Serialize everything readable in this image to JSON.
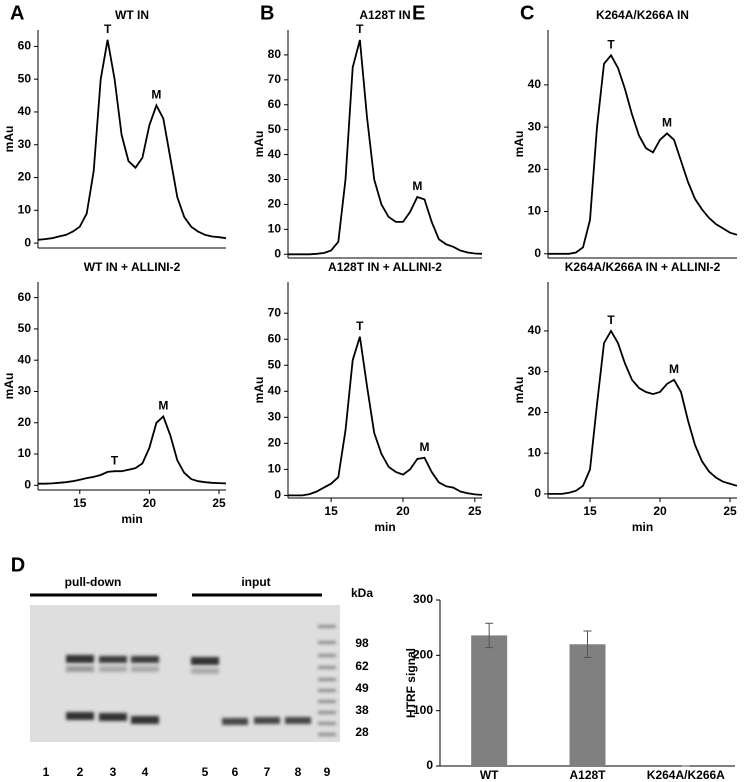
{
  "chart_data": [
    {
      "type": "line",
      "panel": "A",
      "title": "WT IN",
      "ylabel": "mAu",
      "x": [
        12,
        12.5,
        13,
        13.5,
        14,
        14.5,
        15,
        15.5,
        16,
        16.5,
        17,
        17.5,
        18,
        18.5,
        19,
        19.5,
        20,
        20.5,
        21,
        21.5,
        22,
        22.5,
        23,
        23.5,
        24,
        24.5,
        25,
        25.5
      ],
      "series": [
        {
          "color": "#000000",
          "values": [
            1,
            1.2,
            1.5,
            2,
            2.5,
            3.5,
            5,
            9,
            22,
            50,
            62,
            50,
            33,
            25,
            23,
            26,
            36,
            42,
            38,
            26,
            14,
            8,
            5,
            3.5,
            2.5,
            2,
            1.8,
            1.5
          ]
        }
      ],
      "xlim": [
        12,
        25.5
      ],
      "ylim": [
        -1.5,
        65
      ],
      "yticks": [
        0,
        10,
        20,
        30,
        40,
        50,
        60
      ],
      "annotations": [
        {
          "text": "T",
          "x": 17,
          "y": 62
        },
        {
          "text": "M",
          "x": 20.5,
          "y": 42
        }
      ]
    },
    {
      "type": "line",
      "title": "WT IN + ALLINI-2",
      "ylabel": "mAu",
      "xlabel": "min",
      "x": [
        12,
        12.5,
        13,
        13.5,
        14,
        14.5,
        15,
        15.5,
        16,
        16.5,
        17,
        17.5,
        18,
        18.5,
        19,
        19.5,
        20,
        20.5,
        21,
        21.5,
        22,
        22.5,
        23,
        23.5,
        24,
        24.5,
        25,
        25.5
      ],
      "series": [
        {
          "color": "#000000",
          "values": [
            0.5,
            0.5,
            0.6,
            0.8,
            1,
            1.3,
            1.8,
            2.3,
            2.7,
            3.3,
            4.3,
            4.5,
            4.5,
            5,
            5.5,
            7,
            12,
            20,
            22,
            16,
            8,
            4,
            2,
            1.3,
            1,
            0.8,
            0.7,
            0.6
          ]
        }
      ],
      "xlim": [
        12,
        25.5
      ],
      "ylim": [
        -1.5,
        65
      ],
      "yticks": [
        0,
        10,
        20,
        30,
        40,
        50,
        60
      ],
      "xticks": [
        15,
        20,
        25
      ],
      "annotations": [
        {
          "text": "T",
          "x": 17.5,
          "y": 4.5
        },
        {
          "text": "M",
          "x": 21,
          "y": 22
        }
      ]
    },
    {
      "type": "line",
      "panel": "B",
      "title": "A128T IN",
      "ylabel": "mAu",
      "x": [
        12,
        12.5,
        13,
        13.5,
        14,
        14.5,
        15,
        15.5,
        16,
        16.5,
        17,
        17.5,
        18,
        18.5,
        19,
        19.5,
        20,
        20.5,
        21,
        21.5,
        22,
        22.5,
        23,
        23.5,
        24,
        24.5,
        25,
        25.5
      ],
      "series": [
        {
          "color": "#000000",
          "values": [
            0,
            0,
            0,
            0,
            0.2,
            0.5,
            1.5,
            5,
            30,
            75,
            86,
            55,
            30,
            20,
            15,
            13,
            13,
            17,
            23,
            22,
            13,
            6,
            4,
            3,
            1.5,
            0.7,
            0.3,
            0.2
          ]
        }
      ],
      "xlim": [
        12,
        25.5
      ],
      "ylim": [
        -1.5,
        90
      ],
      "yticks": [
        0,
        10,
        20,
        30,
        40,
        50,
        60,
        70,
        80
      ],
      "annotations": [
        {
          "text": "T",
          "x": 17,
          "y": 86
        },
        {
          "text": "M",
          "x": 21,
          "y": 23
        }
      ]
    },
    {
      "type": "line",
      "title": "A128T IN + ALLINI-2",
      "ylabel": "mAu",
      "xlabel": "min",
      "x": [
        12,
        12.5,
        13,
        13.5,
        14,
        14.5,
        15,
        15.5,
        16,
        16.5,
        17,
        17.5,
        18,
        18.5,
        19,
        19.5,
        20,
        20.5,
        21,
        21.5,
        22,
        22.5,
        23,
        23.5,
        24,
        24.5,
        25,
        25.5
      ],
      "series": [
        {
          "color": "#000000",
          "values": [
            0,
            0,
            0,
            0.5,
            1.5,
            3,
            4.5,
            7,
            25,
            52,
            61,
            42,
            24,
            16,
            11,
            9,
            8,
            10,
            14,
            14.5,
            9,
            5,
            3.5,
            3,
            1.5,
            0.8,
            0.4,
            0.2
          ]
        }
      ],
      "xlim": [
        12,
        25.5
      ],
      "ylim": [
        -1,
        82
      ],
      "yticks": [
        0,
        10,
        20,
        30,
        40,
        50,
        60,
        70
      ],
      "xticks": [
        15,
        20,
        25
      ],
      "annotations": [
        {
          "text": "T",
          "x": 17,
          "y": 61
        },
        {
          "text": "M",
          "x": 21.5,
          "y": 14.5
        }
      ]
    },
    {
      "type": "line",
      "panel": "C",
      "title": "K264A/K266A IN",
      "ylabel": "mAu",
      "x": [
        12,
        12.5,
        13,
        13.5,
        14,
        14.5,
        15,
        15.5,
        16,
        16.5,
        17,
        17.5,
        18,
        18.5,
        19,
        19.5,
        20,
        20.5,
        21,
        21.5,
        22,
        22.5,
        23,
        23.5,
        24,
        24.5,
        25,
        25.5
      ],
      "series": [
        {
          "color": "#000000",
          "values": [
            0,
            0,
            0,
            0,
            0.3,
            1.5,
            8,
            30,
            45,
            47,
            44,
            39,
            33,
            28,
            25,
            24,
            27,
            28.5,
            27,
            22,
            17,
            13,
            10.5,
            8.5,
            7,
            6,
            5,
            4.5
          ]
        }
      ],
      "xlim": [
        12,
        25.5
      ],
      "ylim": [
        -1,
        53
      ],
      "yticks": [
        0,
        10,
        20,
        30,
        40
      ],
      "annotations": [
        {
          "text": "T",
          "x": 16.5,
          "y": 47
        },
        {
          "text": "M",
          "x": 20.5,
          "y": 28.5
        }
      ]
    },
    {
      "type": "line",
      "title": "K264A/K266A IN + ALLINI-2",
      "ylabel": "mAu",
      "xlabel": "min",
      "x": [
        12,
        12.5,
        13,
        13.5,
        14,
        14.5,
        15,
        15.5,
        16,
        16.5,
        17,
        17.5,
        18,
        18.5,
        19,
        19.5,
        20,
        20.5,
        21,
        21.5,
        22,
        22.5,
        23,
        23.5,
        24,
        24.5,
        25,
        25.5
      ],
      "series": [
        {
          "color": "#000000",
          "values": [
            0,
            0,
            0,
            0.3,
            0.8,
            2,
            6,
            22,
            37,
            40,
            37,
            32,
            28,
            26,
            25,
            24.5,
            25,
            27,
            28,
            25,
            18,
            12,
            8,
            5.5,
            4,
            3,
            2.5,
            2
          ]
        }
      ],
      "xlim": [
        12,
        25.5
      ],
      "ylim": [
        -1,
        52
      ],
      "yticks": [
        0,
        10,
        20,
        30,
        40
      ],
      "xticks": [
        15,
        20,
        25
      ],
      "annotations": [
        {
          "text": "T",
          "x": 16.5,
          "y": 40
        },
        {
          "text": "M",
          "x": 21,
          "y": 28
        }
      ]
    },
    {
      "type": "bar",
      "panel": "E",
      "ylabel": "HTRF signal",
      "categories": [
        "WT",
        "A128T",
        "K264A/K266A"
      ],
      "values": [
        236,
        220,
        0
      ],
      "errors": [
        22,
        24,
        0
      ],
      "color": "#808080",
      "ylim": [
        0,
        300
      ],
      "yticks": [
        0,
        100,
        200,
        300
      ]
    }
  ],
  "gel": {
    "panel": "D",
    "groups": [
      "pull-down",
      "input"
    ],
    "unit": "kDa",
    "markers": [
      "98",
      "62",
      "49",
      "38",
      "28"
    ],
    "lanes": [
      "1",
      "2",
      "3",
      "4",
      "5",
      "6",
      "7",
      "8",
      "9"
    ]
  }
}
